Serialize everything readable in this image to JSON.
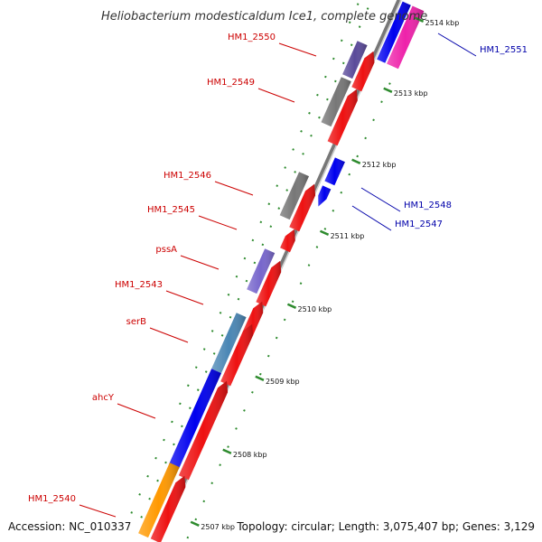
{
  "title": "Heliobacterium modesticaldum Ice1, complete genome",
  "footer": {
    "accession": "Accession: NC_010337",
    "summary": "Topology: circular; Length: 3,075,407 bp; Genes: 3,129"
  },
  "colors": {
    "backbone": "#8a8a8a",
    "tick": "#2e8b2e",
    "label_minus": "#cc0000",
    "label_plus": "#0000aa"
  },
  "ticks": [
    "2507 kbp",
    "2508 kbp",
    "2509 kbp",
    "2510 kbp",
    "2511 kbp",
    "2512 kbp",
    "2513 kbp",
    "2514 kbp"
  ],
  "genes": [
    {
      "id": "g-2550",
      "label": "HM1_2550",
      "color": "#5a4a9a"
    },
    {
      "id": "g-2550-arrow",
      "label": "",
      "color": "#ee1111"
    },
    {
      "id": "g-2549",
      "label": "HM1_2549",
      "color": "#777777"
    },
    {
      "id": "g-2549-arrow",
      "label": "",
      "color": "#ee1111"
    },
    {
      "id": "g-2546",
      "label": "HM1_2546",
      "color": "#777777"
    },
    {
      "id": "g-2546-arrow",
      "label": "",
      "color": "#ee1111"
    },
    {
      "id": "g-2545",
      "label": "HM1_2545",
      "color": "#ee1111"
    },
    {
      "id": "g-pssA",
      "label": "pssA",
      "color": "#7766cc"
    },
    {
      "id": "g-pssA-arrow",
      "label": "",
      "color": "#ee1111"
    },
    {
      "id": "g-2543",
      "label": "HM1_2543",
      "color": "#ee1111"
    },
    {
      "id": "g-serB",
      "label": "serB",
      "color": "#4a86b4"
    },
    {
      "id": "g-serB-arrow",
      "label": "",
      "color": "#ee1111"
    },
    {
      "id": "g-ahcY",
      "label": "ahcY",
      "color": "#0000ee"
    },
    {
      "id": "g-ahcY-arrow",
      "label": "",
      "color": "#ee1111"
    },
    {
      "id": "g-2540",
      "label": "HM1_2540",
      "color": "#ff9900"
    },
    {
      "id": "g-2540-arrow",
      "label": "",
      "color": "#ee1111"
    },
    {
      "id": "g-2548",
      "label": "HM1_2548",
      "color": "#0000ee"
    },
    {
      "id": "g-2547",
      "label": "HM1_2547",
      "color": "#0000ee"
    },
    {
      "id": "g-2551",
      "label": "HM1_2551",
      "color": "#ee22aa"
    },
    {
      "id": "g-2551-inner",
      "label": "",
      "color": "#0000ee"
    }
  ]
}
